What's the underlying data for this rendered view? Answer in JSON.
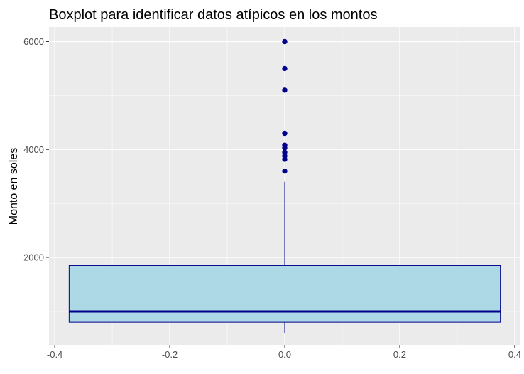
{
  "chart_data": {
    "type": "boxplot",
    "title": "Boxplot para identificar datos atípicos en los montos",
    "xlabel": "",
    "ylabel": "Monto en soles",
    "xlim": [
      -0.41,
      0.41
    ],
    "ylim": [
      380,
      6270
    ],
    "x_ticks": [
      -0.4,
      -0.2,
      0.0,
      0.2,
      0.4
    ],
    "x_tick_labels": [
      "-0.4",
      "-0.2",
      "0.0",
      "0.2",
      "0.4"
    ],
    "y_ticks": [
      2000,
      4000,
      6000
    ],
    "y_tick_labels": [
      "2000",
      "4000",
      "6000"
    ],
    "grid": true,
    "box": {
      "x_center": 0.0,
      "x_min": -0.375,
      "x_max": 0.375,
      "q1": 800,
      "median": 1000,
      "q3": 1850,
      "whisker_low": 600,
      "whisker_high": 3400
    },
    "outliers": [
      {
        "x": 0.0,
        "y": 6000
      },
      {
        "x": 0.0,
        "y": 5500
      },
      {
        "x": 0.0,
        "y": 5100
      },
      {
        "x": 0.0,
        "y": 4300
      },
      {
        "x": 0.0,
        "y": 4080
      },
      {
        "x": 0.0,
        "y": 4030
      },
      {
        "x": 0.0,
        "y": 3950
      },
      {
        "x": 0.0,
        "y": 3880
      },
      {
        "x": 0.0,
        "y": 3820
      },
      {
        "x": 0.0,
        "y": 3600
      }
    ],
    "colors": {
      "panel_bg": "#EBEBEB",
      "grid_major": "#FFFFFF",
      "box_fill": "#ADD8E6",
      "box_stroke": "#00008B",
      "outlier": "#00008B",
      "tick_text": "#4D4D4D",
      "title_text": "#000000"
    }
  }
}
